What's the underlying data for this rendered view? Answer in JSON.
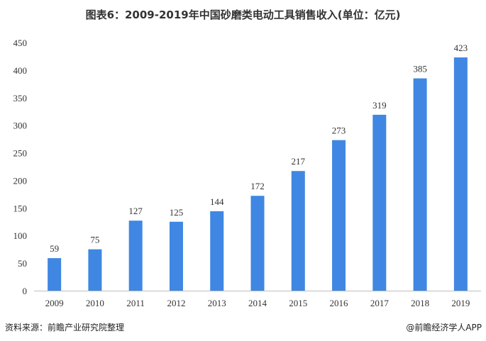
{
  "chart_data": {
    "type": "bar",
    "title": "图表6：2009-2019年中国砂磨类电动工具销售收入(单位：亿元)",
    "categories": [
      "2009",
      "2010",
      "2011",
      "2012",
      "2013",
      "2014",
      "2015",
      "2016",
      "2017",
      "2018",
      "2019"
    ],
    "values": [
      59,
      75,
      127,
      125,
      144,
      172,
      217,
      273,
      319,
      385,
      423
    ],
    "xlabel": "",
    "ylabel": "",
    "ylim": [
      0,
      450
    ],
    "yticks": [
      0,
      50,
      100,
      150,
      200,
      250,
      300,
      350,
      400,
      450
    ],
    "grid": false,
    "bar_color": "#3f87e2"
  },
  "source": "资料来源：前瞻产业研究院整理",
  "credit": "@前瞻经济学人APP"
}
